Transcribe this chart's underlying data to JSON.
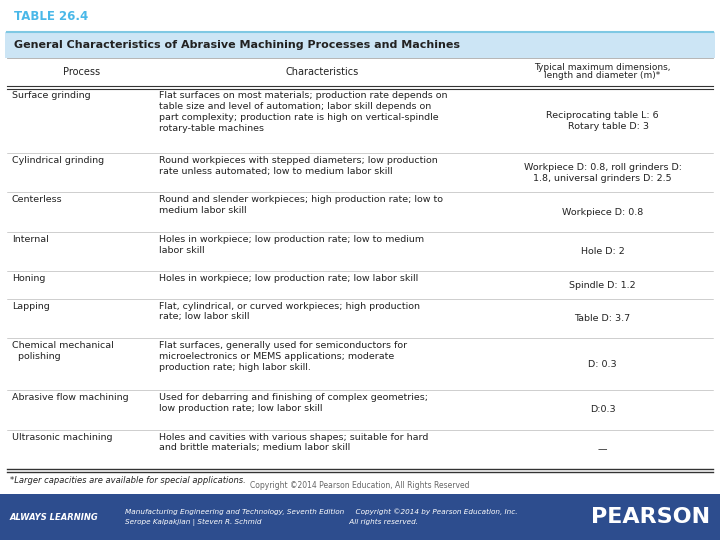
{
  "title": "TABLE 26.4",
  "subtitle": "General Characteristics of Abrasive Machining Processes and Machines",
  "col_headers": [
    "Process",
    "Characteristics",
    "Typical maximum dimensions,\nlength and diameter (m)*"
  ],
  "rows": [
    {
      "process": "Surface grinding",
      "characteristics": "Flat surfaces on most materials; production rate depends on\ntable size and level of automation; labor skill depends on\npart complexity; production rate is high on vertical-spindle\nrotary-table machines",
      "dimensions": "Reciprocating table L: 6\n    Rotary table D: 3"
    },
    {
      "process": "Cylindrical grinding",
      "characteristics": "Round workpieces with stepped diameters; low production\nrate unless automated; low to medium labor skill",
      "dimensions": "Workpiece D: 0.8, roll grinders D:\n1.8, universal grinders D: 2.5"
    },
    {
      "process": "Centerless",
      "characteristics": "Round and slender workpieces; high production rate; low to\nmedium labor skill",
      "dimensions": "Workpiece D: 0.8"
    },
    {
      "process": "Internal",
      "characteristics": "Holes in workpiece; low production rate; low to medium\nlabor skill",
      "dimensions": "Hole D: 2"
    },
    {
      "process": "Honing",
      "characteristics": "Holes in workpiece; low production rate; low labor skill",
      "dimensions": "Spindle D: 1.2"
    },
    {
      "process": "Lapping",
      "characteristics": "Flat, cylindrical, or curved workpieces; high production\nrate; low labor skill",
      "dimensions": "Table D: 3.7"
    },
    {
      "process": "Chemical mechanical\n  polishing",
      "characteristics": "Flat surfaces, generally used for semiconductors for\nmicroelectronics or MEMS applications; moderate\nproduction rate; high labor skill.",
      "dimensions": "D: 0.3"
    },
    {
      "process": "Abrasive flow machining",
      "characteristics": "Used for debarring and finishing of complex geometries;\nlow production rate; low labor skill",
      "dimensions": "D:0.3"
    },
    {
      "process": "Ultrasonic machining",
      "characteristics": "Holes and cavities with various shapes; suitable for hard\nand brittle materials; medium labor skill",
      "dimensions": "—"
    }
  ],
  "footnote": "*Larger capacities are available for special applications.",
  "copyright": "Copyright ©2014 Pearson Education, All Rights Reserved",
  "footer_bg": "#2d4d8e",
  "footer_text1": "ALWAYS LEARNING",
  "footer_text2_line1": "Manufacturing Engineering and Technology, Seventh Edition     Copyright ©2014 by Pearson Education, Inc.",
  "footer_text2_line2": "Serope Kalpakjian | Steven R. Schmid                                       All rights reserved.",
  "footer_text3": "PEARSON",
  "title_color": "#4ab8e8",
  "subtitle_bg": "#cce5f5",
  "line_color_blue": "#7ec8e3",
  "line_color_dark": "#333333",
  "line_color_light": "#aaaaaa",
  "table_bg": "#ffffff",
  "text_color": "#222222",
  "body_font": 6.8,
  "header_font": 7.0,
  "title_fontsize": 8.5,
  "subtitle_fontsize": 8.0,
  "footer_fontsize": 5.8
}
